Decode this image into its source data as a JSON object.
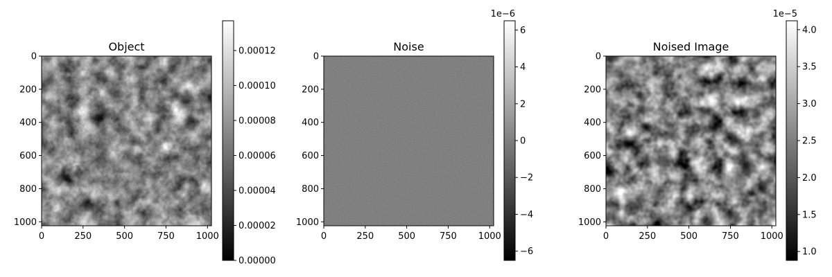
{
  "chart_data": [
    {
      "type": "heatmap",
      "title": "Object",
      "colormap": "gray",
      "xlim": [
        0,
        1024
      ],
      "ylim": [
        1024,
        0
      ],
      "x_ticks": [
        0,
        250,
        500,
        750,
        1000
      ],
      "y_ticks": [
        0,
        200,
        400,
        600,
        800,
        1000
      ],
      "colorbar": {
        "min": 0.0,
        "max": 0.000137,
        "ticks": [
          0.0,
          2e-05,
          4e-05,
          6e-05,
          8e-05,
          0.0001,
          0.00012
        ],
        "tick_labels": [
          "0.00000",
          "0.00002",
          "0.00004",
          "0.00006",
          "0.00008",
          "0.00010",
          "0.00012"
        ],
        "offset_label": ""
      }
    },
    {
      "type": "heatmap",
      "title": "Noise",
      "colormap": "gray",
      "xlim": [
        0,
        1024
      ],
      "ylim": [
        1024,
        0
      ],
      "x_ticks": [
        0,
        250,
        500,
        750,
        1000
      ],
      "y_ticks": [
        0,
        200,
        400,
        600,
        800,
        1000
      ],
      "colorbar": {
        "min": -6.5,
        "max": 6.5,
        "ticks": [
          -6,
          -4,
          -2,
          0,
          2,
          4,
          6
        ],
        "tick_labels": [
          "−6",
          "−4",
          "−2",
          "0",
          "2",
          "4",
          "6"
        ],
        "offset_label": "1e−6"
      }
    },
    {
      "type": "heatmap",
      "title": "Noised Image",
      "colormap": "gray",
      "xlim": [
        0,
        1024
      ],
      "ylim": [
        1024,
        0
      ],
      "x_ticks": [
        0,
        250,
        500,
        750,
        1000
      ],
      "y_ticks": [
        0,
        200,
        400,
        600,
        800,
        1000
      ],
      "colorbar": {
        "min": 0.88,
        "max": 4.12,
        "ticks": [
          1.0,
          1.5,
          2.0,
          2.5,
          3.0,
          3.5,
          4.0
        ],
        "tick_labels": [
          "1.0",
          "1.5",
          "2.0",
          "2.5",
          "3.0",
          "3.5",
          "4.0"
        ],
        "offset_label": "1e−5"
      }
    }
  ]
}
